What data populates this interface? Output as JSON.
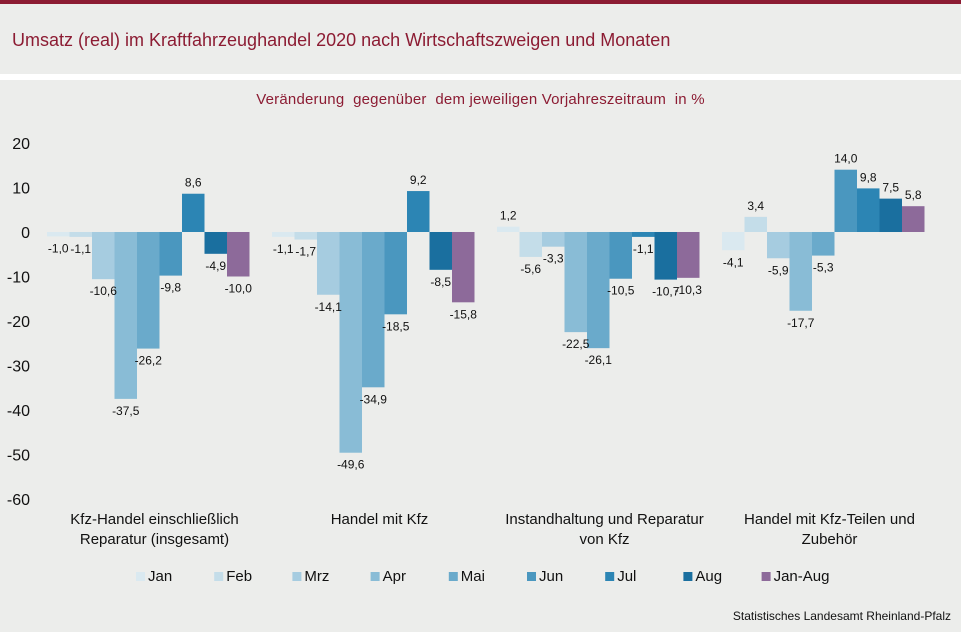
{
  "header": {
    "title": "Umsatz (real) im Kraftfahrzeughandel 2020 nach Wirtschaftszweigen und Monaten"
  },
  "chart_data": {
    "type": "bar",
    "title": "Veränderung  gegenüber  dem jeweiligen Vorjahreszeitraum  in %",
    "ylim": [
      -60,
      20
    ],
    "yticks": [
      20,
      10,
      0,
      -10,
      -20,
      -30,
      -40,
      -50,
      -60
    ],
    "grid": false,
    "legend_position": "bottom",
    "categories": [
      [
        "Kfz-Handel einschließlich",
        "Reparatur (insgesamt)"
      ],
      [
        "Handel mit Kfz"
      ],
      [
        "Instandhaltung und Reparatur",
        "von Kfz"
      ],
      [
        "Handel mit Kfz-Teilen und",
        "Zubehör"
      ]
    ],
    "series": [
      {
        "name": "Jan",
        "color": "#dae9f0",
        "values": [
          -1.0,
          -1.1,
          1.2,
          -4.1
        ]
      },
      {
        "name": "Feb",
        "color": "#c4dde9",
        "values": [
          -1.1,
          -1.7,
          -5.6,
          3.4
        ]
      },
      {
        "name": "Mrz",
        "color": "#a6cce0",
        "values": [
          -10.6,
          -14.1,
          -3.3,
          -5.9
        ]
      },
      {
        "name": "Apr",
        "color": "#89bcd6",
        "values": [
          -37.5,
          -49.6,
          -22.5,
          -17.7
        ]
      },
      {
        "name": "Mai",
        "color": "#6aaacb",
        "values": [
          -26.2,
          -34.9,
          -26.1,
          -5.3
        ]
      },
      {
        "name": "Jun",
        "color": "#4a97bf",
        "values": [
          -9.8,
          -18.5,
          -10.5,
          14.0
        ]
      },
      {
        "name": "Jul",
        "color": "#2c85b4",
        "values": [
          8.6,
          9.2,
          -1.1,
          9.8
        ]
      },
      {
        "name": "Aug",
        "color": "#1a6f9f",
        "values": [
          -4.9,
          -8.5,
          -10.7,
          7.5
        ]
      },
      {
        "name": "Jan-Aug",
        "color": "#8d6a9a",
        "values": [
          -10.0,
          -15.8,
          -10.3,
          5.8
        ]
      }
    ]
  },
  "footer": {
    "source": "Statistisches Landesamt Rheinland-Pfalz"
  }
}
